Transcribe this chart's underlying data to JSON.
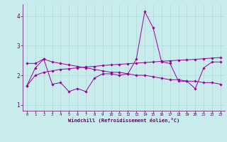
{
  "xlabel": "Windchill (Refroidissement éolien,°C)",
  "bg_color": "#c8ecec",
  "grid_color": "#b0d8d8",
  "line_color": "#990099",
  "xlim": [
    -0.5,
    23.5
  ],
  "ylim": [
    0.8,
    4.4
  ],
  "xticks": [
    0,
    1,
    2,
    3,
    4,
    5,
    6,
    7,
    8,
    9,
    10,
    11,
    12,
    13,
    14,
    15,
    16,
    17,
    18,
    19,
    20,
    21,
    22,
    23
  ],
  "yticks": [
    1,
    2,
    3,
    4
  ],
  "series": [
    [
      1.65,
      2.25,
      2.55,
      1.7,
      1.75,
      1.45,
      1.55,
      1.45,
      1.9,
      2.05,
      2.05,
      2.0,
      2.05,
      2.55,
      4.15,
      3.6,
      2.45,
      2.4,
      1.8,
      1.8,
      1.55,
      2.25,
      2.45,
      2.45
    ],
    [
      2.4,
      2.4,
      2.55,
      2.45,
      2.4,
      2.35,
      2.3,
      2.25,
      2.2,
      2.15,
      2.1,
      2.1,
      2.05,
      2.0,
      2.0,
      1.95,
      1.9,
      1.85,
      1.85,
      1.8,
      1.8,
      1.75,
      1.75,
      1.7
    ],
    [
      1.65,
      2.0,
      2.1,
      2.15,
      2.2,
      2.22,
      2.25,
      2.28,
      2.3,
      2.33,
      2.35,
      2.37,
      2.39,
      2.41,
      2.43,
      2.45,
      2.47,
      2.49,
      2.51,
      2.52,
      2.54,
      2.56,
      2.58,
      2.6
    ]
  ]
}
